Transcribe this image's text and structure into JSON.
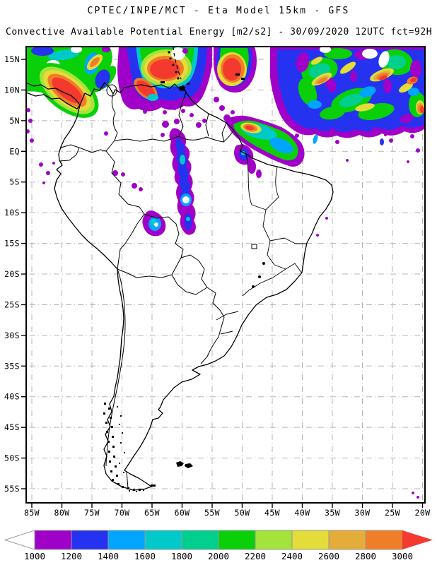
{
  "header": {
    "title": "CPTEC/INPE/MCT -  Eta Model 15km - GFS",
    "subtitle": "Convective Available Potential Energy [m2/s2] - 30/09/2020 12UTC fct=92H"
  },
  "axes": {
    "lat_labels": [
      "15N",
      "10N",
      "5N",
      "EQ",
      "5S",
      "10S",
      "15S",
      "20S",
      "25S",
      "30S",
      "35S",
      "40S",
      "45S",
      "50S",
      "55S"
    ],
    "lon_labels": [
      "85W",
      "80W",
      "75W",
      "70W",
      "65W",
      "60W",
      "55W",
      "50W",
      "45W",
      "40W",
      "35W",
      "30W",
      "25W",
      "20W"
    ]
  },
  "colorbar": {
    "tick_labels": [
      "1000",
      "1200",
      "1400",
      "1600",
      "1800",
      "2000",
      "2200",
      "2400",
      "2600",
      "2800",
      "3000"
    ],
    "colors": [
      "#A001C8",
      "#2533F0",
      "#00A5FF",
      "#00C9C9",
      "#00CF8E",
      "#09D009",
      "#A3E33C",
      "#E4DC38",
      "#E4AD3A",
      "#F07D28"
    ],
    "over_arrow_color": "#F4392E",
    "under_arrow_color": "#FFFFFF"
  },
  "chart_data": {
    "type": "heatmap",
    "title": "CPTEC/INPE/MCT -  Eta Model 15km - GFS",
    "subtitle": "Convective Available Potential Energy [m2/s2] - 30/09/2020 12UTC fct=92H",
    "field": "Convective Available Potential Energy",
    "units": "m2/s2",
    "model": "Eta Model 15km",
    "boundary_condition": "GFS",
    "run": "30/09/2020 12UTC",
    "forecast_hour": "fct=92H",
    "source": "CPTEC/INPE/MCT",
    "x_ticks": [
      "85W",
      "80W",
      "75W",
      "70W",
      "65W",
      "60W",
      "55W",
      "50W",
      "45W",
      "40W",
      "35W",
      "30W",
      "25W",
      "20W"
    ],
    "y_ticks": [
      "15N",
      "10N",
      "5N",
      "EQ",
      "5S",
      "10S",
      "15S",
      "20S",
      "25S",
      "30S",
      "35S",
      "40S",
      "45S",
      "50S",
      "55S"
    ],
    "lon_range_deg_west": [
      86,
      19.5
    ],
    "lat_range_deg": [
      -57.3,
      17.1
    ],
    "grid": "5x5 degree dotted graticule",
    "scale_values": [
      1000,
      1200,
      1400,
      1600,
      1800,
      2000,
      2200,
      2400,
      2600,
      2800,
      3000
    ],
    "scale_colors": [
      "#A001C8",
      "#2533F0",
      "#00A5FF",
      "#00C9C9",
      "#00CF8E",
      "#09D009",
      "#A3E33C",
      "#E4DC38",
      "#E4AD3A",
      "#F07D28"
    ],
    "over_3000_color": "#F4392E",
    "under_1000": "unshaded (white)",
    "regions": [
      {
        "area": "Caribbean off Panama/Colombia (75W-85W, 10N-17N)",
        "cape": "1000-3000 with >3000 red core"
      },
      {
        "area": "Southern Caribbean / N Venezuela coast (57W-70W, 10N-16N)",
        "cape": "large >3000 core ringed 1000-2800"
      },
      {
        "area": "Tropical Atlantic NE quadrant (20W-50W, 5N-17N)",
        "cape": "dense 1200-2200 field with 2600->3000 streaks"
      },
      {
        "area": "Guianas coastal strip (50W-62W, 2N-8N)",
        "cape": "1000-2400 band, small >2800 core near 58W 6N"
      },
      {
        "area": "Western/central Amazon (58W-72W, 3N-10S)",
        "cape": "scattered 1000-1600 cells"
      },
      {
        "area": "South America south of 10S",
        "cape": "below 1000 (unshaded)"
      }
    ]
  }
}
